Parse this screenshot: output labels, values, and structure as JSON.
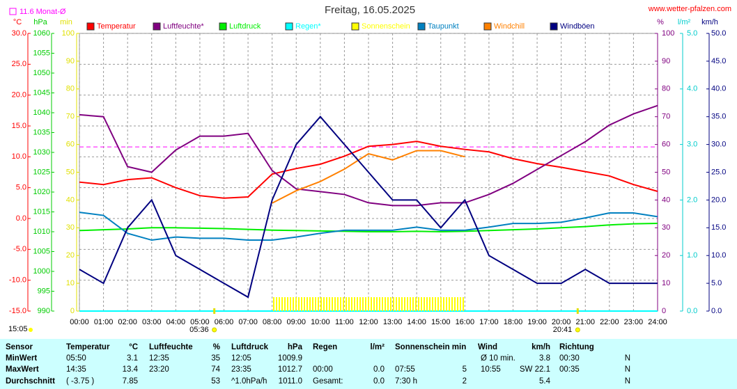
{
  "chart_data": {
    "type": "line",
    "title": "Freitag, 16.05.2025",
    "source": "www.wetter-pfalzen.com",
    "monthly_mean": {
      "label": "11.6 Monat-Ø",
      "value": 11.6,
      "color": "#ff00ff",
      "axis": 0
    },
    "time_label": "15:05",
    "sunrise": "05:36",
    "sunset": "20:41",
    "grid": true,
    "xlim": [
      0,
      24
    ],
    "xticks": [
      {
        "value": 0,
        "label": "00:00"
      },
      {
        "value": 1,
        "label": "01:00"
      },
      {
        "value": 2,
        "label": "02:00"
      },
      {
        "value": 3,
        "label": "03:00"
      },
      {
        "value": 4,
        "label": "04:00"
      },
      {
        "value": 5,
        "label": "05:00"
      },
      {
        "value": 6,
        "label": "06:00"
      },
      {
        "value": 7,
        "label": "07:00"
      },
      {
        "value": 8,
        "label": "08:00"
      },
      {
        "value": 9,
        "label": "09:00"
      },
      {
        "value": 10,
        "label": "10:00"
      },
      {
        "value": 11,
        "label": "11:00"
      },
      {
        "value": 12,
        "label": "12:00"
      },
      {
        "value": 13,
        "label": "13:00"
      },
      {
        "value": 14,
        "label": "14:00"
      },
      {
        "value": 15,
        "label": "15:00"
      },
      {
        "value": 16,
        "label": "16:00"
      },
      {
        "value": 17,
        "label": "17:00"
      },
      {
        "value": 18,
        "label": "18:00"
      },
      {
        "value": 19,
        "label": "19:00"
      },
      {
        "value": 20,
        "label": "20:00"
      },
      {
        "value": 21,
        "label": "21:00"
      },
      {
        "value": 22,
        "label": "22:00"
      },
      {
        "value": 23,
        "label": "23:00"
      },
      {
        "value": 24,
        "label": "24:00"
      }
    ],
    "axes": [
      {
        "label": "°C",
        "color": "#ff0000",
        "ylim": [
          -15,
          30
        ],
        "yticks": [
          {
            "value": -15,
            "label": "-15.0"
          },
          {
            "value": -10,
            "label": "-10.0"
          },
          {
            "value": -5,
            "label": "-5.0"
          },
          {
            "value": 0,
            "label": "0.0"
          },
          {
            "value": 5,
            "label": "5.0"
          },
          {
            "value": 10,
            "label": "10.0"
          },
          {
            "value": 15,
            "label": "15.0"
          },
          {
            "value": 20,
            "label": "20.0"
          },
          {
            "value": 25,
            "label": "25.0"
          },
          {
            "value": 30,
            "label": "30.0"
          }
        ]
      },
      {
        "label": "hPa",
        "color": "#00cc00",
        "ylim": [
          990,
          1060
        ],
        "yticks": [
          990,
          995,
          1000,
          1005,
          1010,
          1015,
          1020,
          1025,
          1030,
          1035,
          1040,
          1045,
          1050,
          1055,
          1060
        ]
      },
      {
        "label": "min",
        "color": "#e0e000",
        "ylim": [
          0,
          100
        ],
        "yticks": [
          0,
          10,
          20,
          30,
          40,
          50,
          60,
          70,
          80,
          90,
          100
        ]
      },
      {
        "label": "%",
        "color": "#800080",
        "ylim": [
          0,
          100
        ],
        "yticks": [
          0,
          10,
          20,
          30,
          40,
          50,
          60,
          70,
          80,
          90,
          100
        ]
      },
      {
        "label": "l/m²",
        "color": "#00cccc",
        "ylim": [
          0,
          5
        ],
        "yticks": [
          {
            "value": 0,
            "label": "0.0"
          },
          {
            "value": 1,
            "label": "1.0"
          },
          {
            "value": 2,
            "label": "2.0"
          },
          {
            "value": 3,
            "label": "3.0"
          },
          {
            "value": 4,
            "label": "4.0"
          },
          {
            "value": 5,
            "label": "5.0"
          }
        ]
      },
      {
        "label": "km/h",
        "color": "#000080",
        "ylim": [
          0,
          50
        ],
        "yticks": [
          {
            "value": 0,
            "label": "0.0"
          },
          {
            "value": 5,
            "label": "5.0"
          },
          {
            "value": 10,
            "label": "10.0"
          },
          {
            "value": 15,
            "label": "15.0"
          },
          {
            "value": 20,
            "label": "20.0"
          },
          {
            "value": 25,
            "label": "25.0"
          },
          {
            "value": 30,
            "label": "30.0"
          },
          {
            "value": 35,
            "label": "35.0"
          },
          {
            "value": 40,
            "label": "40.0"
          },
          {
            "value": 45,
            "label": "45.0"
          },
          {
            "value": 50,
            "label": "50.0"
          }
        ]
      }
    ],
    "x": [
      0,
      1,
      2,
      3,
      4,
      5,
      6,
      7,
      8,
      9,
      10,
      11,
      12,
      13,
      14,
      15,
      16,
      17,
      18,
      19,
      20,
      21,
      22,
      23,
      24
    ],
    "series": [
      {
        "name": "Temperatur",
        "color": "#ff0000",
        "axis": 0,
        "values": [
          5.9,
          5.5,
          6.3,
          6.6,
          5.0,
          3.7,
          3.3,
          3.5,
          7.2,
          8.1,
          8.8,
          10.1,
          11.7,
          12.0,
          12.5,
          11.7,
          11.2,
          10.8,
          9.7,
          8.9,
          8.3,
          7.6,
          6.9,
          5.5,
          4.4
        ]
      },
      {
        "name": "Luftfeuchte*",
        "color": "#800080",
        "axis": 3,
        "values": [
          70.7,
          70,
          52,
          50,
          58,
          63,
          63,
          64,
          50.6,
          44,
          43,
          42,
          39,
          38,
          38,
          39,
          39,
          42,
          46,
          51,
          56,
          61,
          67,
          71,
          74
        ]
      },
      {
        "name": "Luftdruck",
        "color": "#00ee00",
        "axis": 1,
        "values": [
          1010.3,
          1010.5,
          1010.7,
          1011.0,
          1011.0,
          1010.9,
          1010.8,
          1010.6,
          1010.4,
          1010.3,
          1010.2,
          1010.1,
          1010.0,
          1010.0,
          1010.1,
          1010.0,
          1010.1,
          1010.3,
          1010.5,
          1010.7,
          1011.0,
          1011.3,
          1011.7,
          1012.0,
          1012.1
        ]
      },
      {
        "name": "Regen*",
        "color": "#00ffff",
        "axis": 4,
        "values": [
          0,
          0,
          0,
          0,
          0,
          0,
          0,
          0,
          0,
          0,
          0,
          0,
          0,
          0,
          0,
          0,
          0,
          0,
          0,
          0,
          0,
          0,
          0,
          0,
          0
        ]
      },
      {
        "name": "Sonnenschein",
        "color": "#ffff00",
        "axis": 2,
        "type": "bar",
        "values": [
          null,
          null,
          null,
          null,
          null,
          null,
          null,
          null,
          5,
          5,
          5,
          5,
          5,
          5,
          5,
          5,
          null,
          null,
          null,
          null,
          null,
          null,
          null,
          null,
          null
        ]
      },
      {
        "name": "Taupunkt",
        "color": "#0080c0",
        "axis": 0,
        "values": [
          1.0,
          0.5,
          -2.4,
          -3.5,
          -3.0,
          -3.2,
          -3.2,
          -3.5,
          -3.5,
          -3.0,
          -2.4,
          -1.9,
          -1.9,
          -1.9,
          -1.4,
          -1.9,
          -1.9,
          -1.4,
          -0.8,
          -0.8,
          -0.6,
          0.1,
          0.9,
          0.9,
          0.3
        ]
      },
      {
        "name": "Windchill",
        "color": "#ff8000",
        "axis": 0,
        "values": [
          null,
          null,
          null,
          null,
          null,
          null,
          null,
          null,
          2.5,
          4.5,
          6.0,
          8.0,
          10.5,
          9.5,
          11.0,
          11.0,
          10.0,
          null,
          null,
          null,
          null,
          null,
          null,
          null,
          null
        ]
      },
      {
        "name": "Windböen",
        "color": "#000080",
        "axis": 5,
        "values": [
          7.5,
          5,
          15,
          20,
          10,
          7.5,
          5,
          2.5,
          20,
          30,
          35,
          30,
          25,
          20,
          20,
          15,
          20,
          10,
          7.5,
          5,
          5,
          7.5,
          5,
          5,
          5
        ]
      }
    ]
  },
  "table": {
    "header": [
      "Sensor",
      "Temperatur",
      "°C",
      "Luftfeuchte",
      "%",
      "Luftdruck",
      "hPa",
      "Regen",
      "l/m²",
      "Sonnenschein min",
      null,
      "Wind",
      "km/h",
      "Richtung",
      null
    ],
    "rows": [
      [
        "MinWert",
        "05:50",
        "3.1",
        "12:35",
        "35",
        "12:05",
        "1009.9",
        null,
        null,
        null,
        null,
        "Ø 10 min.",
        "3.8",
        "00:30",
        "N"
      ],
      [
        "MaxWert",
        "14:35",
        "13.4",
        "23:20",
        "74",
        "23:35",
        "1012.7",
        "00:00",
        "0.0",
        "07:55",
        "5",
        "10:55",
        "SW 22.1",
        "00:35",
        "N"
      ],
      [
        "Durchschnitt",
        "( -3.75 )",
        "7.85",
        null,
        "53",
        "^1.0hPa/h",
        "1011.0",
        "Gesamt:",
        "0.0",
        "7:30 h",
        "2",
        null,
        "5.4",
        null,
        "N"
      ]
    ]
  }
}
